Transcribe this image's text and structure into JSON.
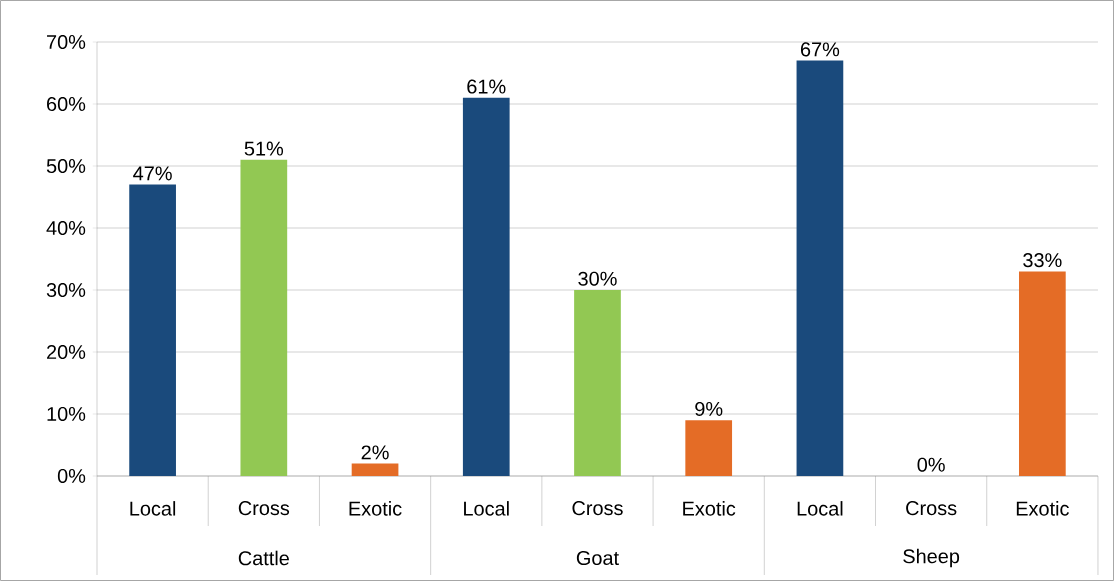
{
  "chart_data": {
    "type": "bar",
    "categories": [
      "Local",
      "Cross",
      "Exotic",
      "Local",
      "Cross",
      "Exotic",
      "Local",
      "Cross",
      "Exotic"
    ],
    "values": [
      47,
      51,
      2,
      61,
      30,
      9,
      67,
      0,
      33
    ],
    "colors": [
      "#1a4a7c",
      "#92c853",
      "#e46c26",
      "#1a4a7c",
      "#92c853",
      "#e46c26",
      "#1a4a7c",
      "#92c853",
      "#e46c26"
    ],
    "value_labels": [
      "47%",
      "51%",
      "2%",
      "61%",
      "30%",
      "9%",
      "67%",
      "0%",
      "33%"
    ],
    "annotations": [
      "Cattle",
      "Goat",
      "Sheep"
    ],
    "ylim": [
      0,
      70
    ],
    "yticks": [
      {
        "value": 0,
        "label": "0%"
      },
      {
        "value": 10,
        "label": "10%"
      },
      {
        "value": 20,
        "label": "20%"
      },
      {
        "value": 30,
        "label": "30%"
      },
      {
        "value": 40,
        "label": "40%"
      },
      {
        "value": 50,
        "label": "50%"
      },
      {
        "value": 60,
        "label": "60%"
      },
      {
        "value": 70,
        "label": "70%"
      }
    ],
    "grid": "y"
  }
}
